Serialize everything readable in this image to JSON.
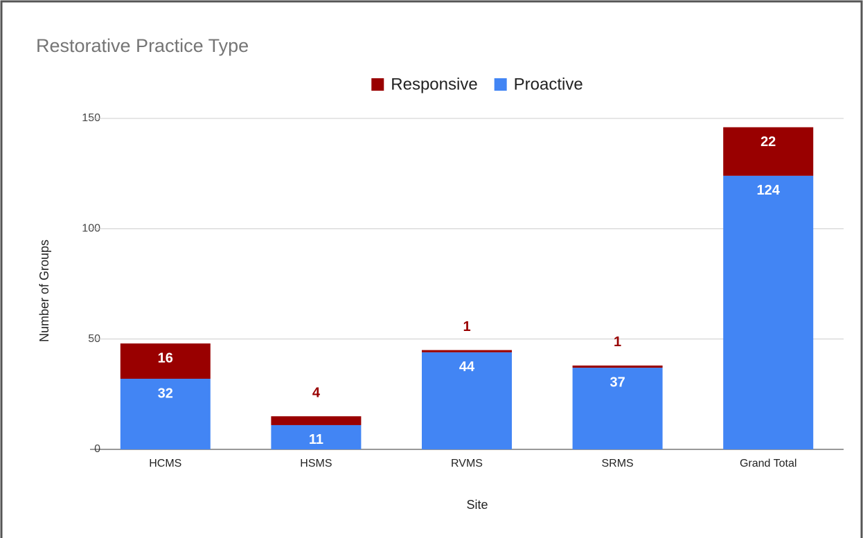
{
  "chart_data": {
    "type": "stacked_bar",
    "title": "Restorative Practice Type",
    "x_label": "Site",
    "y_label": "Number of Groups",
    "categories": [
      "HCMS",
      "HSMS",
      "RVMS",
      "SRMS",
      "Grand Total"
    ],
    "series": [
      {
        "name": "Responsive",
        "color": "#990000",
        "values": [
          16,
          4,
          1,
          1,
          22
        ]
      },
      {
        "name": "Proactive",
        "color": "#4285f4",
        "values": [
          32,
          11,
          44,
          37,
          124
        ]
      }
    ],
    "ylim": [
      0,
      150
    ],
    "yticks": [
      0,
      50,
      100,
      150
    ],
    "grid": true,
    "legend": "top"
  }
}
